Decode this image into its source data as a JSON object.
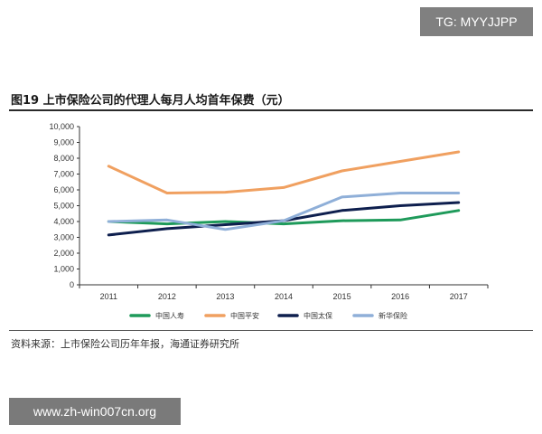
{
  "watermark_top": "TG: MYYJJPP",
  "watermark_bottom": "www.zh-win007cn.org",
  "figure_title": "图19 上市保险公司的代理人每月人均首年保费（元）",
  "source_note": "资料来源：上市保险公司历年年报，海通证券研究所",
  "chart_data": {
    "type": "line",
    "title": "图19 上市保险公司的代理人每月人均首年保费（元）",
    "xlabel": "",
    "ylabel": "",
    "x": [
      "2011",
      "2012",
      "2013",
      "2014",
      "2015",
      "2016",
      "2017"
    ],
    "ylim": [
      0,
      10000
    ],
    "yticks": [
      0,
      1000,
      2000,
      3000,
      4000,
      5000,
      6000,
      7000,
      8000,
      9000,
      10000
    ],
    "ytick_labels": [
      "0",
      "1,000",
      "2,000",
      "3,000",
      "4,000",
      "5,000",
      "6,000",
      "7,000",
      "8,000",
      "9,000",
      "10,000"
    ],
    "grid": false,
    "legend_position": "bottom",
    "series": [
      {
        "name": "中国人寿",
        "color": "#1e9a5a",
        "values": [
          4000,
          3850,
          4000,
          3850,
          4050,
          4100,
          4700
        ]
      },
      {
        "name": "中国平安",
        "color": "#f0a060",
        "values": [
          7500,
          5800,
          5850,
          6150,
          7200,
          7800,
          8400
        ]
      },
      {
        "name": "中国太保",
        "color": "#0e1f4e",
        "values": [
          3150,
          3550,
          3800,
          4050,
          4700,
          5000,
          5200
        ]
      },
      {
        "name": "新华保险",
        "color": "#8fafd8",
        "values": [
          4000,
          4100,
          3500,
          4050,
          5550,
          5800,
          5800
        ]
      }
    ]
  }
}
